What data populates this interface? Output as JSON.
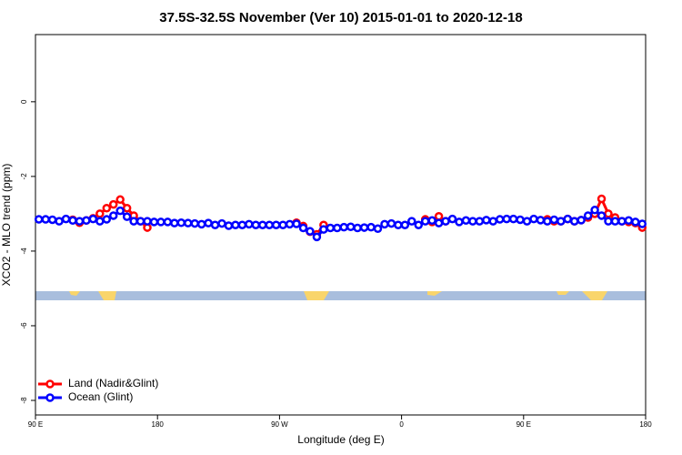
{
  "chart_data": {
    "type": "line",
    "title": "37.5S-32.5S November (Ver 10)   2015-01-01 to 2020-12-18",
    "x_label": "Longitude (deg E)",
    "y_label": "XCO2 - MLO trend (ppm)",
    "x": [
      92.5,
      97.5,
      102.5,
      107.5,
      112.5,
      117.5,
      122.5,
      127.5,
      132.5,
      137.5,
      142.5,
      147.5,
      152.5,
      157.5,
      162.5,
      167.5,
      172.5,
      177.5,
      182.5,
      187.5,
      192.5,
      197.5,
      202.5,
      207.5,
      212.5,
      217.5,
      222.5,
      227.5,
      232.5,
      237.5,
      242.5,
      247.5,
      252.5,
      257.5,
      262.5,
      267.5,
      272.5,
      277.5,
      282.5,
      287.5,
      292.5,
      297.5,
      302.5,
      307.5,
      312.5,
      317.5,
      322.5,
      327.5,
      332.5,
      337.5,
      342.5,
      347.5,
      352.5,
      357.5,
      362.5,
      367.5,
      372.5,
      377.5,
      382.5,
      387.5,
      392.5,
      397.5,
      402.5,
      407.5,
      412.5,
      417.5,
      422.5,
      427.5,
      432.5,
      437.5,
      442.5,
      447.5,
      452.5,
      457.5,
      462.5,
      467.5,
      472.5,
      477.5,
      482.5,
      487.5,
      492.5,
      497.5,
      502.5,
      507.5,
      512.5,
      517.5,
      522.5,
      527.5,
      532.5,
      537.5
    ],
    "series": [
      {
        "name": "Land (Nadir&Glint)",
        "color": "#ff0000",
        "values": [
          null,
          null,
          null,
          null,
          null,
          -3.16,
          -3.24,
          -3.18,
          -3.12,
          -3.0,
          -2.85,
          -2.75,
          -2.62,
          -2.85,
          -3.05,
          -3.2,
          -3.37,
          null,
          null,
          null,
          null,
          null,
          null,
          null,
          null,
          null,
          null,
          null,
          null,
          null,
          null,
          null,
          null,
          null,
          null,
          null,
          null,
          null,
          -3.24,
          -3.33,
          -3.48,
          -3.55,
          -3.3,
          null,
          null,
          null,
          null,
          null,
          null,
          null,
          null,
          null,
          null,
          null,
          null,
          null,
          null,
          -3.15,
          -3.22,
          -3.07,
          -3.2,
          null,
          null,
          null,
          null,
          null,
          null,
          null,
          null,
          null,
          null,
          null,
          null,
          null,
          null,
          -3.15,
          -3.2,
          -3.2,
          -3.14,
          -3.2,
          -3.17,
          -3.1,
          -3.0,
          -2.6,
          -3.0,
          -3.1,
          -3.2,
          -3.22,
          -3.25,
          -3.37
        ]
      },
      {
        "name": "Ocean (Glint)",
        "color": "#0000ff",
        "values": [
          -3.15,
          -3.15,
          -3.16,
          -3.2,
          -3.14,
          -3.18,
          -3.2,
          -3.18,
          -3.14,
          -3.2,
          -3.15,
          -3.05,
          -2.92,
          -3.08,
          -3.2,
          -3.2,
          -3.2,
          -3.22,
          -3.22,
          -3.22,
          -3.25,
          -3.24,
          -3.25,
          -3.26,
          -3.28,
          -3.25,
          -3.3,
          -3.26,
          -3.32,
          -3.3,
          -3.3,
          -3.28,
          -3.3,
          -3.3,
          -3.3,
          -3.3,
          -3.3,
          -3.28,
          -3.27,
          -3.38,
          -3.47,
          -3.62,
          -3.42,
          -3.38,
          -3.38,
          -3.36,
          -3.35,
          -3.38,
          -3.37,
          -3.36,
          -3.4,
          -3.28,
          -3.26,
          -3.3,
          -3.3,
          -3.2,
          -3.3,
          -3.2,
          -3.18,
          -3.25,
          -3.2,
          -3.14,
          -3.22,
          -3.18,
          -3.2,
          -3.2,
          -3.17,
          -3.2,
          -3.15,
          -3.14,
          -3.14,
          -3.16,
          -3.2,
          -3.14,
          -3.17,
          -3.2,
          -3.16,
          -3.2,
          -3.14,
          -3.2,
          -3.17,
          -3.05,
          -2.9,
          -3.05,
          -3.2,
          -3.2,
          -3.2,
          -3.18,
          -3.22,
          -3.27
        ]
      }
    ],
    "xlim": [
      90,
      540
    ],
    "xticks": [
      {
        "value": 90,
        "label": "90 E"
      },
      180,
      {
        "value": 270,
        "label": "90 W"
      },
      {
        "value": 360,
        "label": "0"
      },
      {
        "value": 450,
        "label": "90 E"
      },
      {
        "value": 540,
        "label": "180"
      }
    ],
    "ylim": [
      -8.39,
      1.8
    ],
    "yticks": [
      0,
      -2,
      -4,
      -6,
      -8
    ],
    "legend": "bottom-left"
  }
}
